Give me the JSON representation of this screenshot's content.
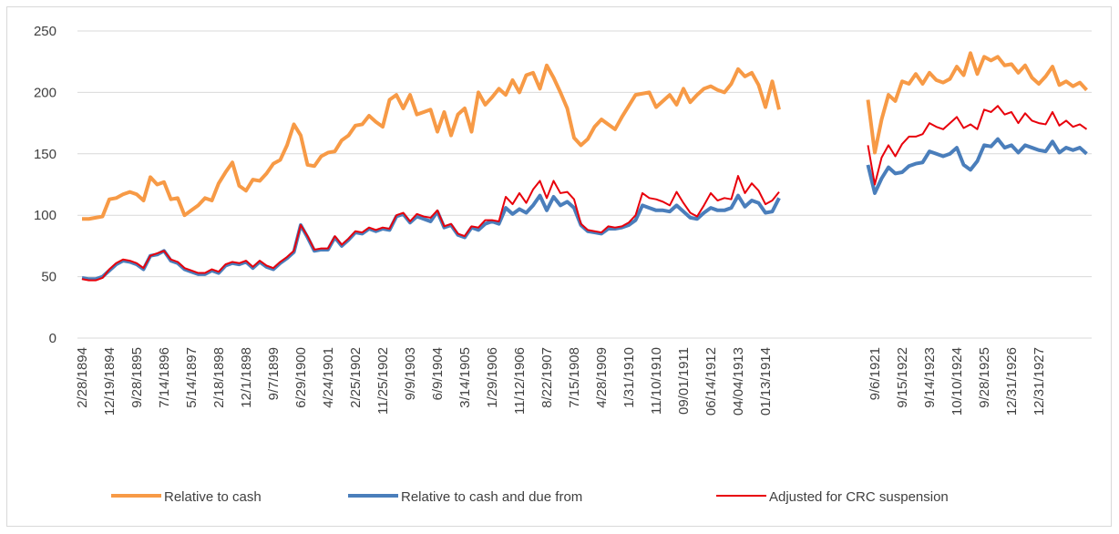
{
  "chart_data": {
    "type": "line",
    "categories": [
      "2/28/1894",
      null,
      null,
      null,
      "12/19/1894",
      null,
      null,
      null,
      "9/28/1895",
      null,
      null,
      null,
      "7/14/1896",
      null,
      null,
      null,
      "5/14/1897",
      null,
      null,
      null,
      "2/18/1898",
      null,
      null,
      null,
      "12/1/1898",
      null,
      null,
      null,
      "9/7/1899",
      null,
      null,
      null,
      "6/29/1900",
      null,
      null,
      null,
      "4/24/1901",
      null,
      null,
      null,
      "2/25/1902",
      null,
      null,
      null,
      "11/25/1902",
      null,
      null,
      null,
      "9/9/1903",
      null,
      null,
      null,
      "6/9/1904",
      null,
      null,
      null,
      "3/14/1905",
      null,
      null,
      null,
      "1/29/1906",
      null,
      null,
      null,
      "11/12/1906",
      null,
      null,
      null,
      "8/22/1907",
      null,
      null,
      null,
      "7/15/1908",
      null,
      null,
      null,
      "4/28/1909",
      null,
      null,
      null,
      "1/31/1910",
      null,
      null,
      null,
      "11/10/1910",
      null,
      null,
      null,
      "09/01/1911",
      null,
      null,
      null,
      "06/14/1912",
      null,
      null,
      null,
      "04/04/1913",
      null,
      null,
      null,
      "01/13/1914",
      null,
      null,
      null,
      null,
      null,
      null,
      null,
      null,
      null,
      null,
      null,
      null,
      null,
      null,
      null,
      "9/6/1921",
      null,
      null,
      null,
      "9/15/1922",
      null,
      null,
      null,
      "9/14/1923",
      null,
      null,
      null,
      "10/10/1924",
      null,
      null,
      null,
      "9/28/1925",
      null,
      null,
      null,
      "12/31/1926",
      null,
      null,
      null,
      "12/31/1927",
      null,
      null,
      null,
      null,
      null,
      null,
      null
    ],
    "series": [
      {
        "name": "Relative to cash",
        "color": "#f79a46",
        "values": [
          97,
          97,
          98,
          99,
          113,
          114,
          117,
          119,
          117,
          112,
          131,
          125,
          127,
          113,
          114,
          100,
          104,
          108,
          114,
          112,
          126,
          135,
          143,
          124,
          120,
          129,
          128,
          134,
          142,
          145,
          157,
          174,
          165,
          141,
          140,
          148,
          151,
          152,
          161,
          165,
          173,
          174,
          181,
          176,
          172,
          194,
          198,
          187,
          198,
          182,
          184,
          186,
          168,
          184,
          165,
          182,
          187,
          168,
          200,
          190,
          196,
          203,
          198,
          210,
          200,
          214,
          216,
          203,
          222,
          212,
          200,
          187,
          163,
          157,
          162,
          172,
          178,
          174,
          170,
          180,
          189,
          198,
          199,
          200,
          188,
          193,
          198,
          190,
          203,
          192,
          198,
          203,
          205,
          202,
          200,
          207,
          219,
          213,
          216,
          206,
          188,
          209,
          186,
          null,
          null,
          null,
          null,
          null,
          null,
          null,
          null,
          null,
          null,
          null,
          null,
          194,
          151,
          178,
          198,
          193,
          209,
          207,
          215,
          207,
          216,
          210,
          208,
          211,
          221,
          214,
          232,
          215,
          229,
          226,
          229,
          222,
          223,
          216,
          222,
          212,
          207,
          213,
          221,
          206,
          209,
          205,
          208,
          202
        ]
      },
      {
        "name": "Relative to cash and due from",
        "color": "#4a7ebb",
        "values": [
          49,
          48,
          48,
          50,
          55,
          60,
          63,
          62,
          60,
          56,
          67,
          68,
          71,
          63,
          61,
          56,
          54,
          52,
          52,
          55,
          53,
          59,
          61,
          60,
          62,
          57,
          62,
          58,
          56,
          61,
          65,
          70,
          92,
          82,
          71,
          72,
          72,
          82,
          75,
          80,
          86,
          85,
          89,
          87,
          89,
          88,
          99,
          101,
          94,
          99,
          97,
          95,
          103,
          90,
          92,
          84,
          82,
          90,
          88,
          93,
          95,
          93,
          106,
          101,
          105,
          102,
          108,
          116,
          104,
          115,
          108,
          111,
          106,
          92,
          87,
          86,
          85,
          89,
          89,
          90,
          92,
          96,
          108,
          106,
          104,
          104,
          103,
          108,
          103,
          98,
          97,
          102,
          106,
          104,
          104,
          106,
          116,
          107,
          112,
          110,
          102,
          103,
          114,
          null,
          null,
          null,
          null,
          null,
          null,
          null,
          null,
          null,
          null,
          null,
          null,
          141,
          118,
          130,
          139,
          134,
          135,
          140,
          142,
          143,
          152,
          150,
          148,
          150,
          155,
          141,
          137,
          144,
          157,
          156,
          162,
          155,
          157,
          151,
          157,
          155,
          153,
          152,
          160,
          151,
          155,
          153,
          155,
          150
        ]
      },
      {
        "name": "Adjusted for CRC suspension",
        "color": "#e8000b",
        "values": [
          48,
          47,
          47,
          49,
          56,
          61,
          64,
          63,
          61,
          57,
          67,
          69,
          71,
          64,
          62,
          57,
          55,
          53,
          53,
          56,
          54,
          60,
          62,
          61,
          63,
          58,
          63,
          59,
          57,
          62,
          66,
          71,
          92,
          83,
          72,
          73,
          73,
          83,
          76,
          81,
          87,
          86,
          90,
          88,
          90,
          89,
          100,
          102,
          95,
          101,
          99,
          98,
          104,
          91,
          93,
          85,
          83,
          91,
          90,
          96,
          96,
          95,
          115,
          109,
          118,
          110,
          121,
          128,
          114,
          128,
          118,
          119,
          113,
          93,
          88,
          87,
          86,
          91,
          90,
          91,
          94,
          100,
          118,
          114,
          113,
          111,
          108,
          119,
          110,
          102,
          99,
          108,
          118,
          112,
          114,
          113,
          132,
          118,
          126,
          120,
          109,
          112,
          119,
          null,
          null,
          null,
          null,
          null,
          null,
          null,
          null,
          null,
          null,
          null,
          null,
          157,
          125,
          147,
          157,
          148,
          158,
          164,
          164,
          166,
          175,
          172,
          170,
          175,
          180,
          171,
          174,
          170,
          186,
          184,
          189,
          182,
          184,
          175,
          183,
          177,
          175,
          174,
          184,
          173,
          177,
          172,
          174,
          170
        ]
      }
    ],
    "ylim": [
      0,
      250
    ],
    "yticks": [
      0,
      50,
      100,
      150,
      200,
      250
    ],
    "grid": true,
    "legend": "bottom"
  }
}
